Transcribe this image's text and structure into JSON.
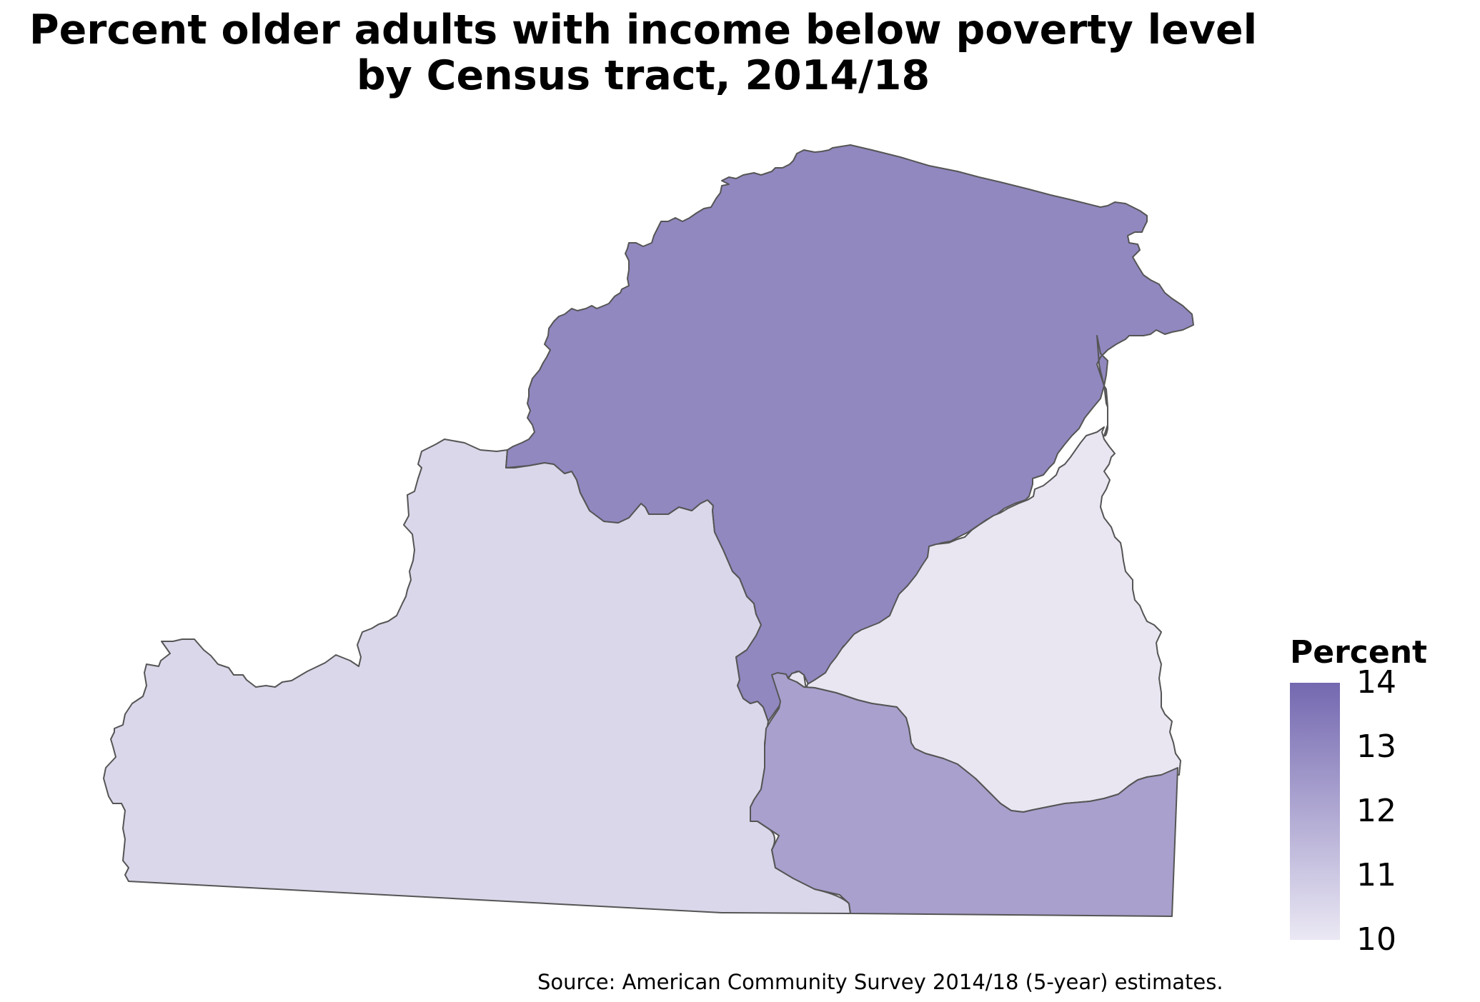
{
  "title": {
    "line1": "Percent older adults with income below poverty level",
    "line2": "by Census tract, 2014/18"
  },
  "map_data": {
    "type": "choropleth",
    "variable": "Percent",
    "regions": [
      {
        "id": "tract-north",
        "value": 13.3,
        "color": "#9188c0"
      },
      {
        "id": "tract-west",
        "value": 11.0,
        "color": "#dad7ea"
      },
      {
        "id": "tract-east",
        "value": 10.3,
        "color": "#e9e6f2"
      },
      {
        "id": "tract-southeast",
        "value": 12.2,
        "color": "#a9a0cd"
      }
    ]
  },
  "legend": {
    "title": "Percent",
    "min": 10,
    "max": 14,
    "ticks": [
      "14",
      "13",
      "12",
      "11",
      "10"
    ],
    "color_low": "#ebe8f4",
    "color_high": "#7468b0"
  },
  "caption": "Source: American Community Survey 2014/18 (5-year) estimates."
}
